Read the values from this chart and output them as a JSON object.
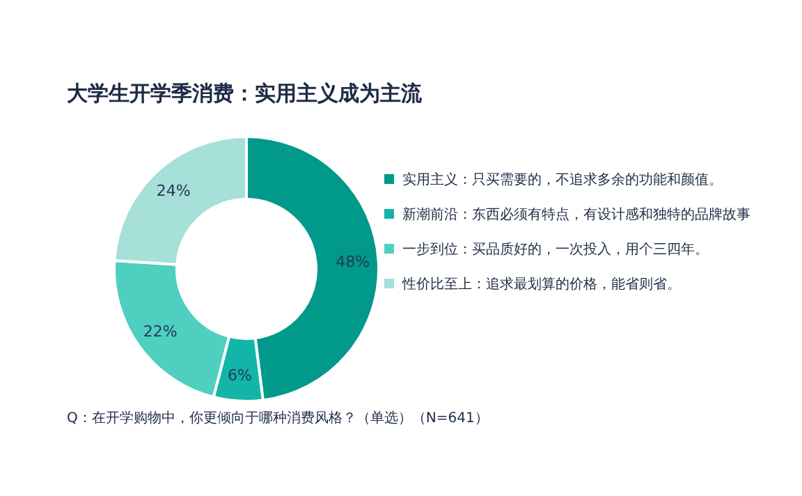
{
  "chart_data": {
    "type": "donut",
    "title": "大学生开学季消费：实用主义成为主流",
    "categories": [
      "实用主义：只买需要的，不追求多余的功能和颜值。",
      "新潮前沿：东西必须有特点，有设计感和独特的品牌故事",
      "一步到位：买品质好的，一次投入，用个三四年。",
      "性价比至上：追求最划算的价格，能省则省。"
    ],
    "values": [
      48,
      6,
      22,
      24
    ],
    "colors": [
      "#00998a",
      "#13b5a8",
      "#4fcfc0",
      "#a6e0d8"
    ],
    "value_labels": [
      "48%",
      "6%",
      "22%",
      "24%"
    ],
    "legend": "right",
    "annotations": [
      "Q：在开学购物中，你更倾向于哪种消费风格？（单选）（N=641）"
    ]
  }
}
